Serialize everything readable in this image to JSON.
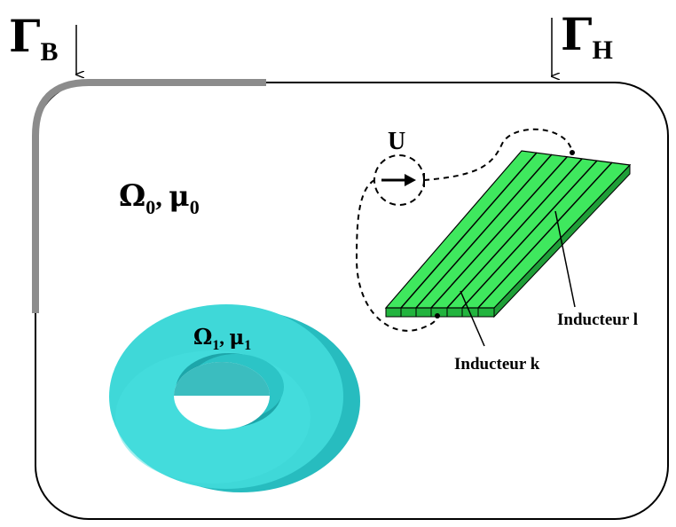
{
  "boundaries": {
    "b": {
      "symbol": "Γ",
      "sub": "B"
    },
    "h": {
      "symbol": "Γ",
      "sub": "H"
    }
  },
  "domains": {
    "air": {
      "omega": "Ω",
      "omega_sub": "0",
      "sep": ", ",
      "mu": "μ",
      "mu_sub": "0"
    },
    "core": {
      "omega": "Ω",
      "omega_sub": "1",
      "sep": ", ",
      "mu": "μ",
      "mu_sub": "1"
    }
  },
  "source": {
    "label": "U"
  },
  "inductors": {
    "k": "Inducteur k",
    "l": "Inducteur l"
  },
  "colors": {
    "boundary_b": "#8c8c8c",
    "core_face": "#3fd8d8",
    "core_inner": "#26b8ba",
    "plate_top": "#3fe85e",
    "plate_side": "#22b43e",
    "lines": "#000000"
  }
}
